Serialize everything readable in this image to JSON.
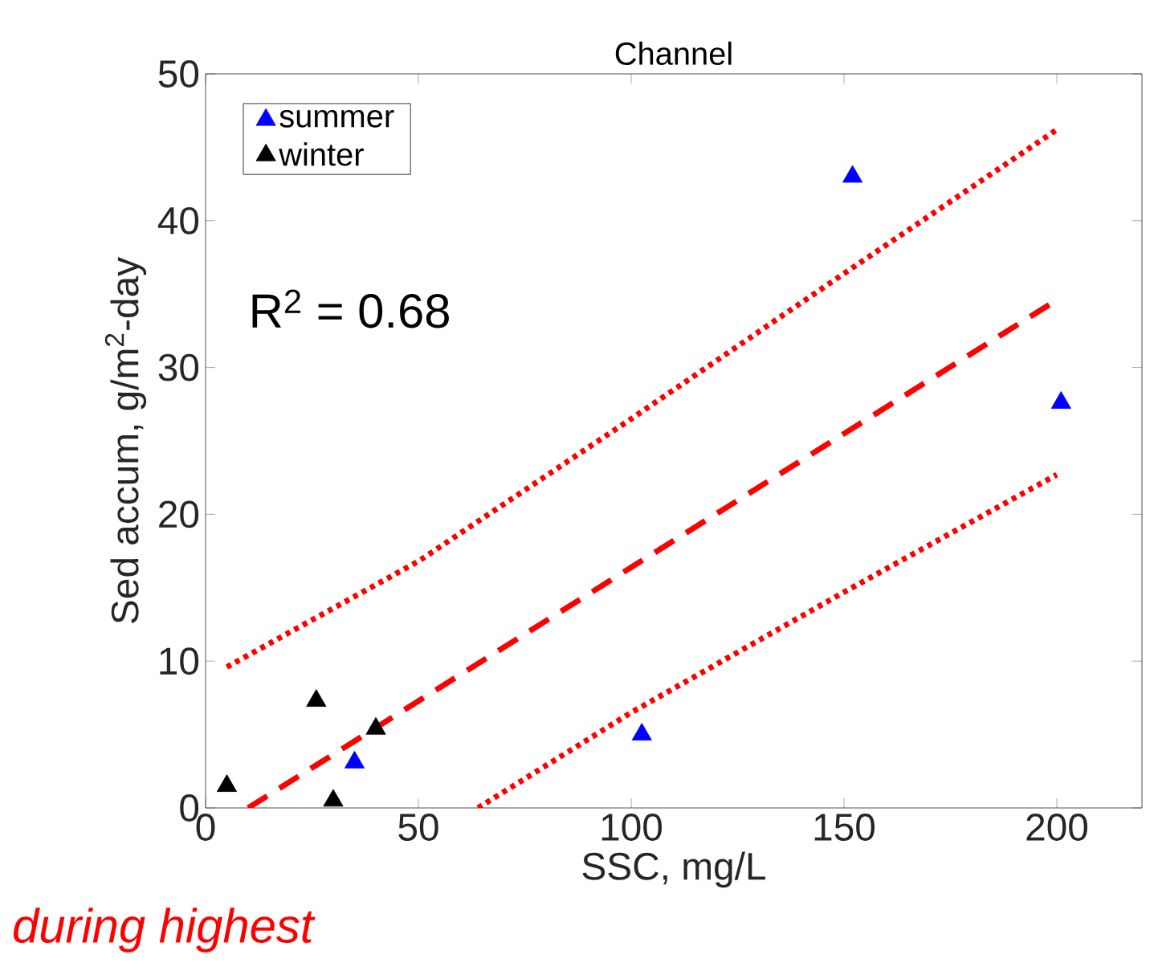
{
  "chart_data": {
    "type": "scatter",
    "title": "Channel",
    "xlabel": "SSC, mg/L",
    "ylabel": "Sed accum, g/m$^{2}$-day",
    "xlim": [
      0,
      220
    ],
    "ylim": [
      0,
      50
    ],
    "xticks": [
      0,
      50,
      100,
      150,
      200
    ],
    "yticks": [
      0,
      10,
      20,
      30,
      40,
      50
    ],
    "grid": false,
    "legend": "top left",
    "marker": "triangle",
    "series": [
      {
        "name": "summer",
        "color": "#0000ff",
        "x": [
          35,
          102.5,
          152,
          201
        ],
        "values": [
          3.1,
          5,
          43,
          27.6
        ]
      },
      {
        "name": "winter",
        "color": "#000000",
        "x": [
          5,
          26,
          30,
          40
        ],
        "values": [
          1.5,
          7.3,
          0.5,
          5.4
        ]
      },
      {
        "type": "line",
        "color": "#ff0000",
        "line_style": "dashed",
        "marker": "none",
        "x": [
          10,
          200
        ],
        "values": [
          0,
          34.6
        ]
      },
      {
        "type": "line",
        "color": "#ff0000",
        "line_style": "dotted",
        "marker": "none",
        "x": [
          5,
          50,
          100,
          150,
          200
        ],
        "values": [
          9.6,
          16.8,
          26.5,
          36.4,
          46.2
        ]
      },
      {
        "type": "line",
        "color": "#ff0000",
        "line_style": "dotted",
        "marker": "none",
        "x": [
          64,
          100,
          150,
          200
        ],
        "values": [
          0,
          6.5,
          14.7,
          22.7
        ]
      }
    ],
    "annotations": [
      "R$^{2}$ = 0.68",
      "during highest"
    ]
  }
}
